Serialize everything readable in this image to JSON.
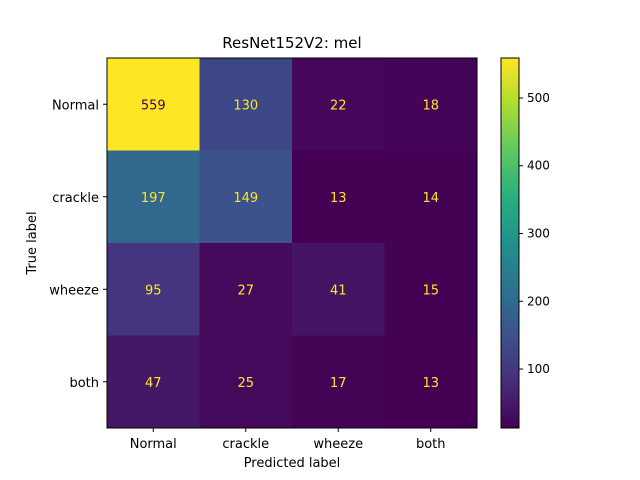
{
  "chart_data": {
    "type": "heatmap",
    "title": "ResNet152V2: mel",
    "xlabel": "Predicted label",
    "ylabel": "True label",
    "x_categories": [
      "Normal",
      "crackle",
      "wheeze",
      "both"
    ],
    "y_categories": [
      "Normal",
      "crackle",
      "wheeze",
      "both"
    ],
    "matrix": [
      [
        559,
        130,
        22,
        18
      ],
      [
        197,
        149,
        13,
        14
      ],
      [
        95,
        27,
        41,
        15
      ],
      [
        47,
        25,
        17,
        13
      ]
    ],
    "colormap": "viridis",
    "colorbar": {
      "min": 13,
      "max": 559,
      "ticks": [
        100,
        200,
        300,
        400,
        500
      ]
    },
    "colors": {
      "text_on_dark": "#fde725",
      "text_on_light": "#440154"
    }
  }
}
